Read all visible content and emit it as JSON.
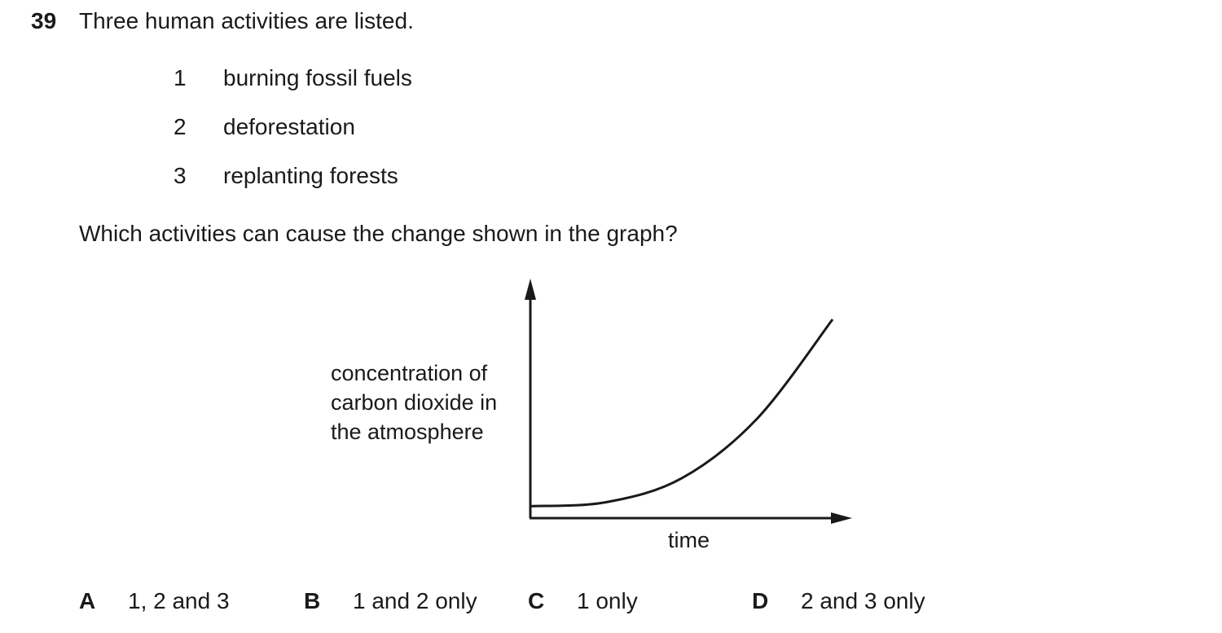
{
  "question": {
    "number": "39",
    "stem": "Three human activities are listed.",
    "activities": [
      {
        "num": "1",
        "text": "burning fossil fuels"
      },
      {
        "num": "2",
        "text": "deforestation"
      },
      {
        "num": "3",
        "text": "replanting forests"
      }
    ],
    "prompt": "Which activities can cause the change shown in the graph?"
  },
  "chart_data": {
    "type": "line",
    "ylabel": "concentration of carbon dioxide in the atmosphere",
    "xlabel": "time",
    "grid": false,
    "legend": "none",
    "series": [
      {
        "x": [
          0,
          0.25,
          0.5,
          0.75,
          1.0
        ],
        "values": [
          0.06,
          0.08,
          0.2,
          0.5,
          1.0
        ]
      }
    ]
  },
  "options": [
    {
      "letter": "A",
      "text": "1, 2 and 3"
    },
    {
      "letter": "B",
      "text": "1 and 2 only"
    },
    {
      "letter": "C",
      "text": "1 only"
    },
    {
      "letter": "D",
      "text": "2 and 3 only"
    }
  ]
}
